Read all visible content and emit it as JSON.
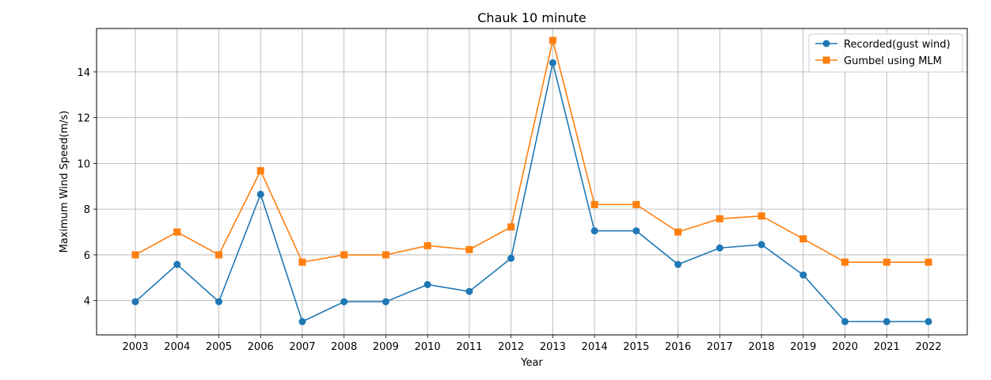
{
  "chart_data": {
    "type": "line",
    "title": "Chauk 10 minute",
    "xlabel": "Year",
    "ylabel": "Maximum Wind Speed(m/s)",
    "categories": [
      "2003",
      "2004",
      "2005",
      "2006",
      "2007",
      "2008",
      "2009",
      "2010",
      "2011",
      "2012",
      "2013",
      "2014",
      "2015",
      "2016",
      "2017",
      "2018",
      "2019",
      "2020",
      "2021",
      "2022"
    ],
    "ylim": [
      2.5,
      15.9
    ],
    "yticks": [
      "4",
      "6",
      "8",
      "10",
      "12",
      "14"
    ],
    "grid": true,
    "legend_position": "top-right",
    "series": [
      {
        "name": "Recorded(gust wind)",
        "color": "#1f77b4",
        "marker": "circle",
        "values": [
          3.95,
          5.58,
          3.95,
          8.65,
          3.08,
          3.95,
          3.95,
          4.7,
          4.4,
          5.85,
          14.4,
          7.05,
          7.05,
          5.58,
          6.3,
          6.45,
          5.12,
          3.08,
          3.08,
          3.08
        ]
      },
      {
        "name": "Gumbel using MLM",
        "color": "#ff7f0e",
        "marker": "square",
        "values": [
          6.0,
          7.0,
          6.0,
          9.68,
          5.68,
          6.0,
          6.0,
          6.4,
          6.23,
          7.22,
          15.38,
          8.2,
          8.2,
          7.0,
          7.58,
          7.7,
          6.7,
          5.68,
          5.68,
          5.68
        ]
      }
    ]
  }
}
